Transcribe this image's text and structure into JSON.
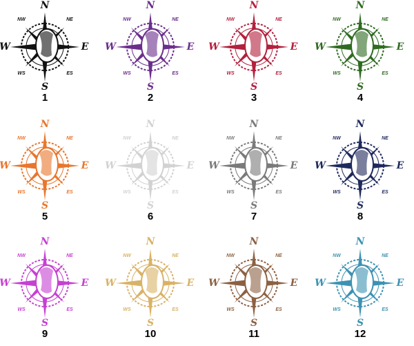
{
  "compass_labels": {
    "n": "N",
    "e": "E",
    "s": "S",
    "w": "W",
    "nw": "NW",
    "ne": "NE",
    "sw": "WS",
    "se": "ES"
  },
  "items": [
    {
      "label": "1",
      "color": "#111111"
    },
    {
      "label": "2",
      "color": "#6b2e8c"
    },
    {
      "label": "3",
      "color": "#b3203d"
    },
    {
      "label": "4",
      "color": "#2f6b21"
    },
    {
      "label": "5",
      "color": "#e8762c"
    },
    {
      "label": "6",
      "color": "#d2d2d2"
    },
    {
      "label": "7",
      "color": "#7a7a7a"
    },
    {
      "label": "8",
      "color": "#1f2a5c"
    },
    {
      "label": "9",
      "color": "#c640d2"
    },
    {
      "label": "10",
      "color": "#d9b265"
    },
    {
      "label": "11",
      "color": "#8c6142"
    },
    {
      "label": "12",
      "color": "#3d92b3"
    }
  ]
}
